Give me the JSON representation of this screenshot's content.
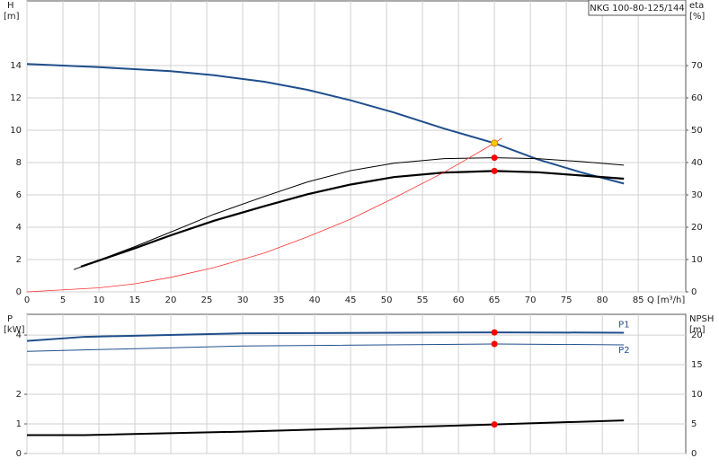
{
  "chart_data": [
    {
      "type": "line",
      "title": "NKG 100-80-125/144",
      "y_label": "H",
      "y_unit": "[m]",
      "y2_label": "eta",
      "y2_unit": "[%]",
      "x_label": "Q",
      "x_unit": "[m³/h]",
      "xlim": [
        0,
        91.6
      ],
      "xticks": [
        0,
        5,
        10,
        15,
        20,
        25,
        30,
        35,
        40,
        45,
        50,
        55,
        60,
        65,
        70,
        75,
        80,
        85
      ],
      "ylim": [
        0,
        18
      ],
      "yticks": [
        0,
        2,
        4,
        6,
        8,
        10,
        12,
        14
      ],
      "y2lim": [
        0,
        90
      ],
      "y2ticks": [
        0,
        10,
        20,
        30,
        40,
        50,
        60,
        70
      ],
      "grid": true,
      "series": [
        {
          "color": "#1f4e8c",
          "x": [
            0,
            10,
            20,
            26,
            33,
            39,
            45,
            51,
            58,
            65,
            71,
            77,
            83
          ],
          "values": [
            14.1,
            13.9,
            13.65,
            13.4,
            13.0,
            12.5,
            11.85,
            11.1,
            10.1,
            9.2,
            8.2,
            7.4,
            6.7
          ]
        },
        {
          "color": "#000000",
          "axis": "y2",
          "x": [
            6.5,
            15,
            20,
            26,
            33,
            39,
            45,
            51,
            58,
            65,
            71,
            77,
            83
          ],
          "values": [
            6.9,
            14,
            18.5,
            24,
            29.5,
            34,
            37.5,
            39.8,
            41.2,
            41.5,
            41.2,
            40.3,
            39.2
          ]
        },
        {
          "color": "#000000",
          "axis": "y2",
          "x": [
            7.5,
            15,
            20,
            26,
            33,
            39,
            45,
            51,
            58,
            65,
            71,
            77,
            83
          ],
          "values": [
            7.8,
            13.5,
            17.5,
            22,
            26.5,
            30.2,
            33.2,
            35.5,
            36.9,
            37.4,
            37,
            36,
            35
          ]
        },
        {
          "color": "#ff3030",
          "x": [
            0,
            10,
            15,
            20,
            26,
            33,
            39,
            45,
            51,
            58,
            65,
            66
          ],
          "values": [
            0,
            0.25,
            0.5,
            0.9,
            1.5,
            2.4,
            3.4,
            4.5,
            5.8,
            7.4,
            9.2,
            9.5
          ]
        }
      ],
      "points": [
        {
          "x": 65,
          "y": 41.5,
          "axis": "y2",
          "color": "#ff0000"
        },
        {
          "x": 65,
          "y": 37.4,
          "axis": "y2",
          "color": "#ff0000"
        },
        {
          "x": 65,
          "y": 9.2,
          "color": "#ffcc00"
        }
      ]
    },
    {
      "type": "line",
      "y_label": "P",
      "y_unit": "[kW]",
      "y2_label": "NPSH",
      "y2_unit": "[m]",
      "xlim": [
        0,
        91.6
      ],
      "xticks": [
        0,
        5,
        10,
        15,
        20,
        25,
        30,
        35,
        40,
        45,
        50,
        55,
        60,
        65,
        70,
        75,
        80,
        85
      ],
      "ylim": [
        0,
        4.7
      ],
      "yticks": [
        0,
        1,
        2,
        4
      ],
      "y2lim": [
        0,
        23.5
      ],
      "y2ticks": [
        0,
        5,
        10,
        15,
        20
      ],
      "grid": true,
      "series": [
        {
          "name": "P1",
          "color": "#1f4e8c",
          "x": [
            0,
            8,
            30,
            65,
            83
          ],
          "values": [
            3.8,
            3.94,
            4.06,
            4.09,
            4.08
          ]
        },
        {
          "name": "P2",
          "color": "#1f4e8c",
          "x": [
            0,
            30,
            65,
            83
          ],
          "values": [
            3.45,
            3.63,
            3.7,
            3.67
          ]
        },
        {
          "color": "#000000",
          "axis": "y2",
          "x": [
            0,
            8,
            30,
            65,
            83
          ],
          "values": [
            3.1,
            3.1,
            3.7,
            4.9,
            5.6
          ]
        }
      ],
      "points": [
        {
          "x": 65,
          "y": 4.09,
          "color": "#ff0000"
        },
        {
          "x": 65,
          "y": 3.7,
          "color": "#ff0000"
        },
        {
          "x": 65,
          "y": 4.9,
          "axis": "y2",
          "color": "#ff0000"
        }
      ]
    }
  ]
}
